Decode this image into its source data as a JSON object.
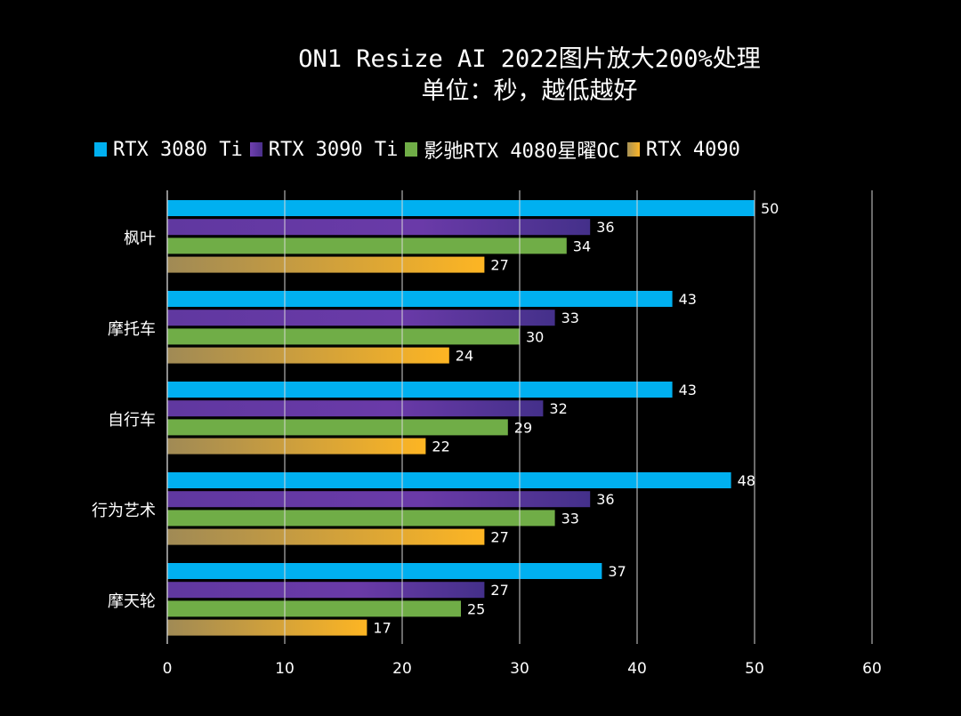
{
  "chart_data": {
    "type": "bar",
    "orientation": "horizontal",
    "title": "ON1 Resize AI 2022图片放大200%处理",
    "subtitle": "单位：秒，越低越好",
    "xlabel": "",
    "ylabel": "",
    "xlim": [
      0,
      60
    ],
    "x_ticks": [
      "0",
      "10",
      "20",
      "30",
      "40",
      "50",
      "60"
    ],
    "grid": true,
    "legend_position": "top",
    "categories": [
      "枫叶",
      "摩托车",
      "自行车",
      "行为艺术",
      "摩天轮"
    ],
    "series": [
      {
        "name": "RTX 3080 Ti",
        "color": "#00b0f0",
        "values": [
          50,
          43,
          43,
          48,
          37
        ]
      },
      {
        "name": "RTX 3090 Ti",
        "color": "#6a3aa8",
        "values": [
          36,
          33,
          32,
          36,
          27
        ]
      },
      {
        "name": "影驰RTX 4080星曜OC",
        "color": "#70ad47",
        "values": [
          34,
          30,
          29,
          33,
          25
        ]
      },
      {
        "name": "RTX 4090",
        "color": "#fbb427",
        "values": [
          27,
          24,
          22,
          27,
          17
        ]
      }
    ]
  }
}
